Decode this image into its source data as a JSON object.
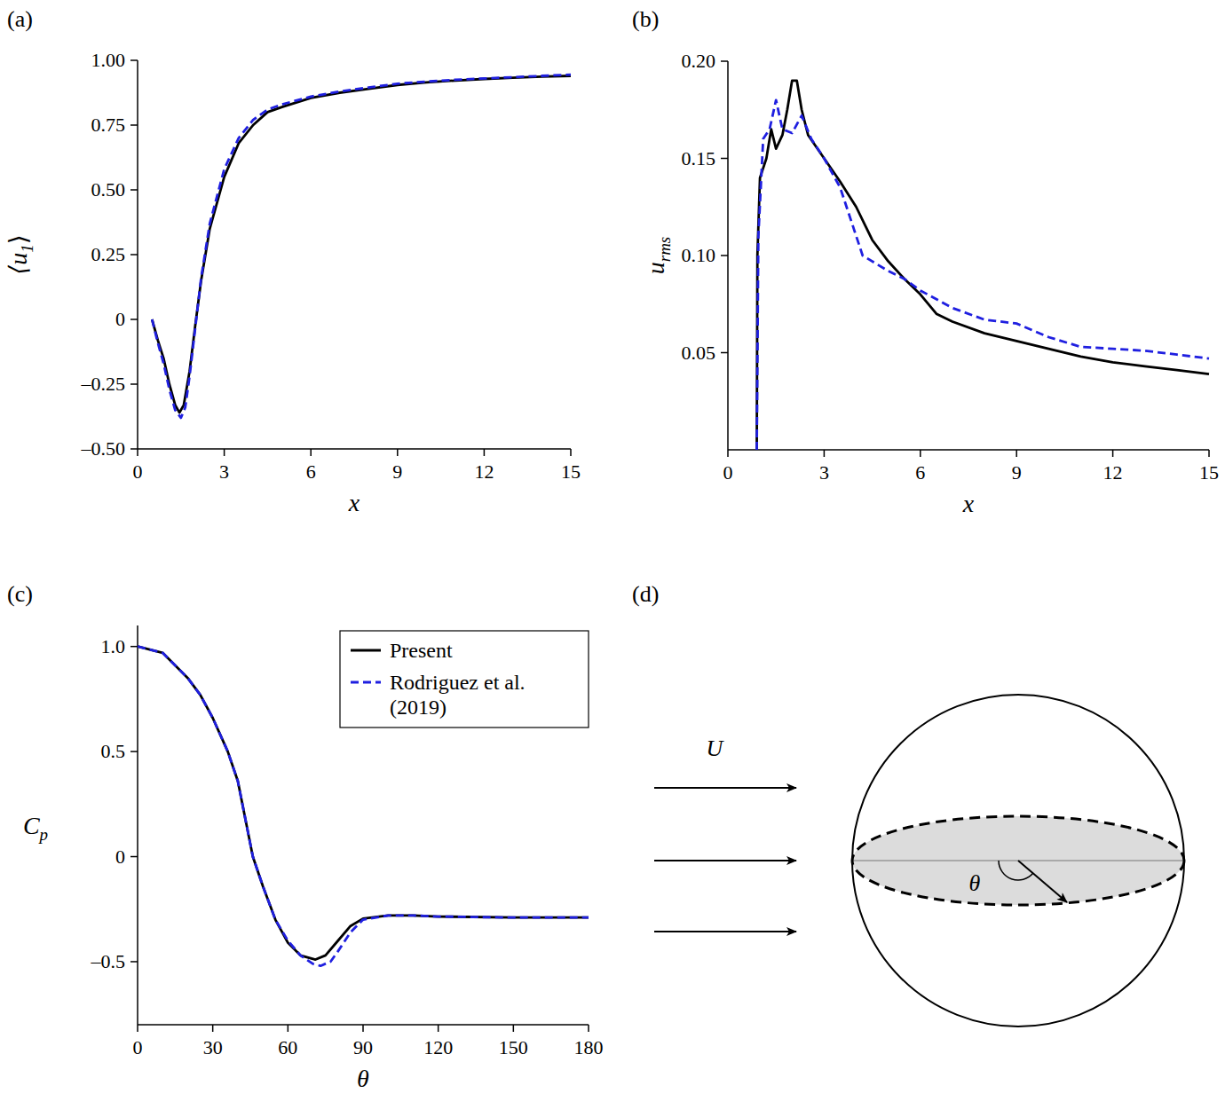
{
  "chart_data": [
    {
      "type": "line",
      "title": "(a)",
      "xlabel": "x",
      "ylabel": {
        "text": "⟨u",
        "subscript": "1",
        "suffix": "⟩"
      },
      "xlim": [
        0,
        15
      ],
      "ylim": [
        -0.5,
        1.0
      ],
      "xticks": [
        0,
        3,
        6,
        9,
        12,
        15
      ],
      "yticks": [
        {
          "value": -0.5,
          "label": "–0.50"
        },
        {
          "value": -0.25,
          "label": "–0.25"
        },
        0,
        0.25,
        {
          "value": 0.5,
          "label": "0.50"
        },
        0.75,
        {
          "value": 1.0,
          "label": "1.00"
        }
      ],
      "series": [
        {
          "name": "Present",
          "color": "#000000",
          "line_style": "solid",
          "x": [
            0.5,
            0.7,
            0.9,
            1.1,
            1.3,
            1.45,
            1.6,
            1.8,
            2.0,
            2.2,
            2.5,
            3,
            3.5,
            4,
            4.5,
            5,
            6,
            7,
            8,
            9,
            10,
            11,
            12,
            13,
            14,
            15
          ],
          "values": [
            0,
            -0.08,
            -0.15,
            -0.25,
            -0.33,
            -0.36,
            -0.33,
            -0.2,
            -0.02,
            0.15,
            0.35,
            0.55,
            0.68,
            0.75,
            0.8,
            0.82,
            0.855,
            0.875,
            0.89,
            0.905,
            0.915,
            0.922,
            0.928,
            0.933,
            0.937,
            0.94
          ]
        },
        {
          "name": "Rodriguez et al. (2019)",
          "color": "#1f1fe0",
          "line_style": "dashed",
          "x": [
            0.5,
            0.7,
            0.9,
            1.1,
            1.3,
            1.5,
            1.65,
            1.8,
            2.0,
            2.2,
            2.5,
            3,
            3.5,
            4,
            4.5,
            5,
            6,
            7,
            8,
            9,
            10,
            11,
            12,
            13,
            14,
            15
          ],
          "values": [
            0,
            -0.09,
            -0.17,
            -0.27,
            -0.35,
            -0.38,
            -0.34,
            -0.22,
            -0.03,
            0.16,
            0.37,
            0.58,
            0.7,
            0.77,
            0.81,
            0.83,
            0.86,
            0.88,
            0.895,
            0.91,
            0.918,
            0.925,
            0.93,
            0.935,
            0.94,
            0.945
          ]
        }
      ]
    },
    {
      "type": "line",
      "title": "(b)",
      "xlabel": "x",
      "ylabel": {
        "text": "u",
        "subscript": "rms"
      },
      "xlim": [
        0,
        15
      ],
      "ylim": [
        0,
        0.2
      ],
      "xticks": [
        0,
        3,
        6,
        9,
        12,
        15
      ],
      "yticks": [
        0.05,
        {
          "value": 0.1,
          "label": "0.10"
        },
        0.15,
        {
          "value": 0.2,
          "label": "0.20"
        }
      ],
      "series": [
        {
          "name": "Present",
          "color": "#000000",
          "line_style": "solid",
          "x": [
            0.9,
            0.92,
            1.0,
            1.2,
            1.35,
            1.5,
            1.7,
            1.85,
            2.0,
            2.15,
            2.3,
            2.5,
            3,
            3.5,
            4,
            4.5,
            5,
            5.5,
            6,
            6.5,
            7,
            8,
            9,
            10,
            11,
            12,
            13,
            14,
            15
          ],
          "values": [
            0,
            0.1,
            0.14,
            0.15,
            0.165,
            0.155,
            0.162,
            0.175,
            0.19,
            0.19,
            0.175,
            0.162,
            0.15,
            0.138,
            0.125,
            0.108,
            0.097,
            0.088,
            0.08,
            0.07,
            0.066,
            0.06,
            0.056,
            0.052,
            0.048,
            0.045,
            0.043,
            0.041,
            0.039
          ]
        },
        {
          "name": "Rodriguez et al. (2019)",
          "color": "#1f1fe0",
          "line_style": "dashed",
          "x": [
            0.9,
            0.95,
            1.1,
            1.3,
            1.5,
            1.7,
            2.0,
            2.3,
            2.6,
            3,
            3.5,
            3.9,
            4.2,
            5,
            5.5,
            6,
            7,
            8,
            9,
            10,
            11,
            12,
            13,
            14,
            15
          ],
          "values": [
            0,
            0.11,
            0.16,
            0.165,
            0.18,
            0.165,
            0.163,
            0.172,
            0.16,
            0.15,
            0.135,
            0.115,
            0.1,
            0.092,
            0.088,
            0.082,
            0.073,
            0.067,
            0.065,
            0.058,
            0.053,
            0.052,
            0.051,
            0.049,
            0.047
          ]
        }
      ]
    },
    {
      "type": "line",
      "title": "(c)",
      "xlabel": "θ",
      "ylabel": {
        "text": "C",
        "subscript": "p"
      },
      "xlim": [
        0,
        180
      ],
      "ylim": [
        -0.8,
        1.1
      ],
      "xticks": [
        0,
        30,
        60,
        90,
        120,
        150,
        180
      ],
      "yticks": [
        {
          "value": -0.5,
          "label": "–0.5"
        },
        0,
        0.5,
        {
          "value": 1.0,
          "label": "1.0"
        }
      ],
      "legend": "upper right",
      "series": [
        {
          "name": "Present",
          "color": "#000000",
          "line_style": "solid",
          "x": [
            0,
            10,
            20,
            25,
            30,
            36,
            40,
            46,
            50,
            55,
            60,
            65,
            71,
            75,
            80,
            85,
            90,
            100,
            110,
            120,
            150,
            180
          ],
          "values": [
            1.0,
            0.97,
            0.85,
            0.77,
            0.66,
            0.5,
            0.36,
            0.0,
            -0.14,
            -0.3,
            -0.41,
            -0.47,
            -0.49,
            -0.47,
            -0.4,
            -0.33,
            -0.295,
            -0.28,
            -0.28,
            -0.285,
            -0.29,
            -0.29
          ]
        },
        {
          "name": "Rodriguez et al. (2019)",
          "color": "#1f1fe0",
          "line_style": "dashed",
          "x": [
            0,
            10,
            20,
            25,
            30,
            36,
            40,
            46,
            50,
            55,
            60,
            65,
            70,
            73,
            77,
            80,
            85,
            90,
            100,
            110,
            120,
            150,
            180
          ],
          "values": [
            1.0,
            0.97,
            0.85,
            0.77,
            0.66,
            0.5,
            0.36,
            0.0,
            -0.14,
            -0.3,
            -0.4,
            -0.47,
            -0.51,
            -0.52,
            -0.5,
            -0.45,
            -0.36,
            -0.3,
            -0.28,
            -0.28,
            -0.285,
            -0.29,
            -0.29
          ]
        }
      ]
    }
  ],
  "diagram": {
    "label": "(d)",
    "flow_label": "U",
    "angle_label": "θ"
  }
}
